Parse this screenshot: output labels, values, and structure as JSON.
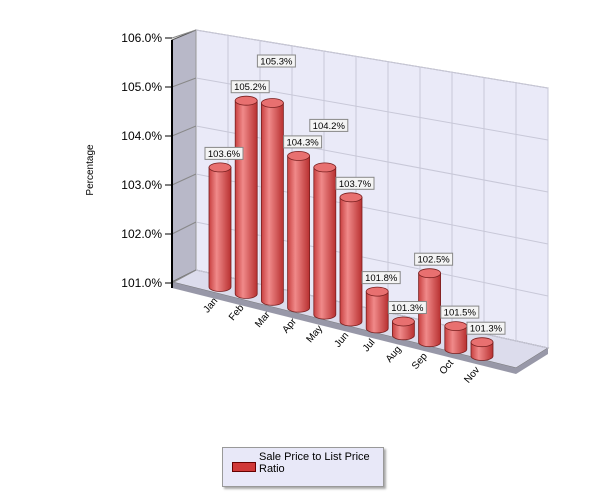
{
  "chart_data": {
    "type": "bar",
    "style": "3d-cylinder",
    "categories": [
      "Jan",
      "Feb",
      "Mar",
      "Apr",
      "May",
      "Jun",
      "Jul",
      "Aug",
      "Sep",
      "Oct",
      "Nov"
    ],
    "series": [
      {
        "name": "Sale Price to List Price Ratio",
        "values": [
          103.6,
          105.2,
          105.3,
          104.3,
          104.2,
          103.7,
          101.8,
          101.3,
          102.5,
          101.5,
          101.3
        ],
        "color": "#e05a5a"
      }
    ],
    "data_labels": [
      "103.6%",
      "105.2%",
      "105.3%",
      "104.3%",
      "104.2%",
      "103.7%",
      "101.8%",
      "101.3%",
      "102.5%",
      "101.5%",
      "101.3%"
    ],
    "ylabel": "Percentage",
    "xlabel": "",
    "ylim": [
      101,
      106
    ],
    "yticks": [
      "101.0%",
      "102.0%",
      "103.0%",
      "104.0%",
      "105.0%",
      "106.0%"
    ],
    "grid": true,
    "legend": "bottom"
  },
  "legend": {
    "label": "Sale Price to List Price Ratio"
  }
}
